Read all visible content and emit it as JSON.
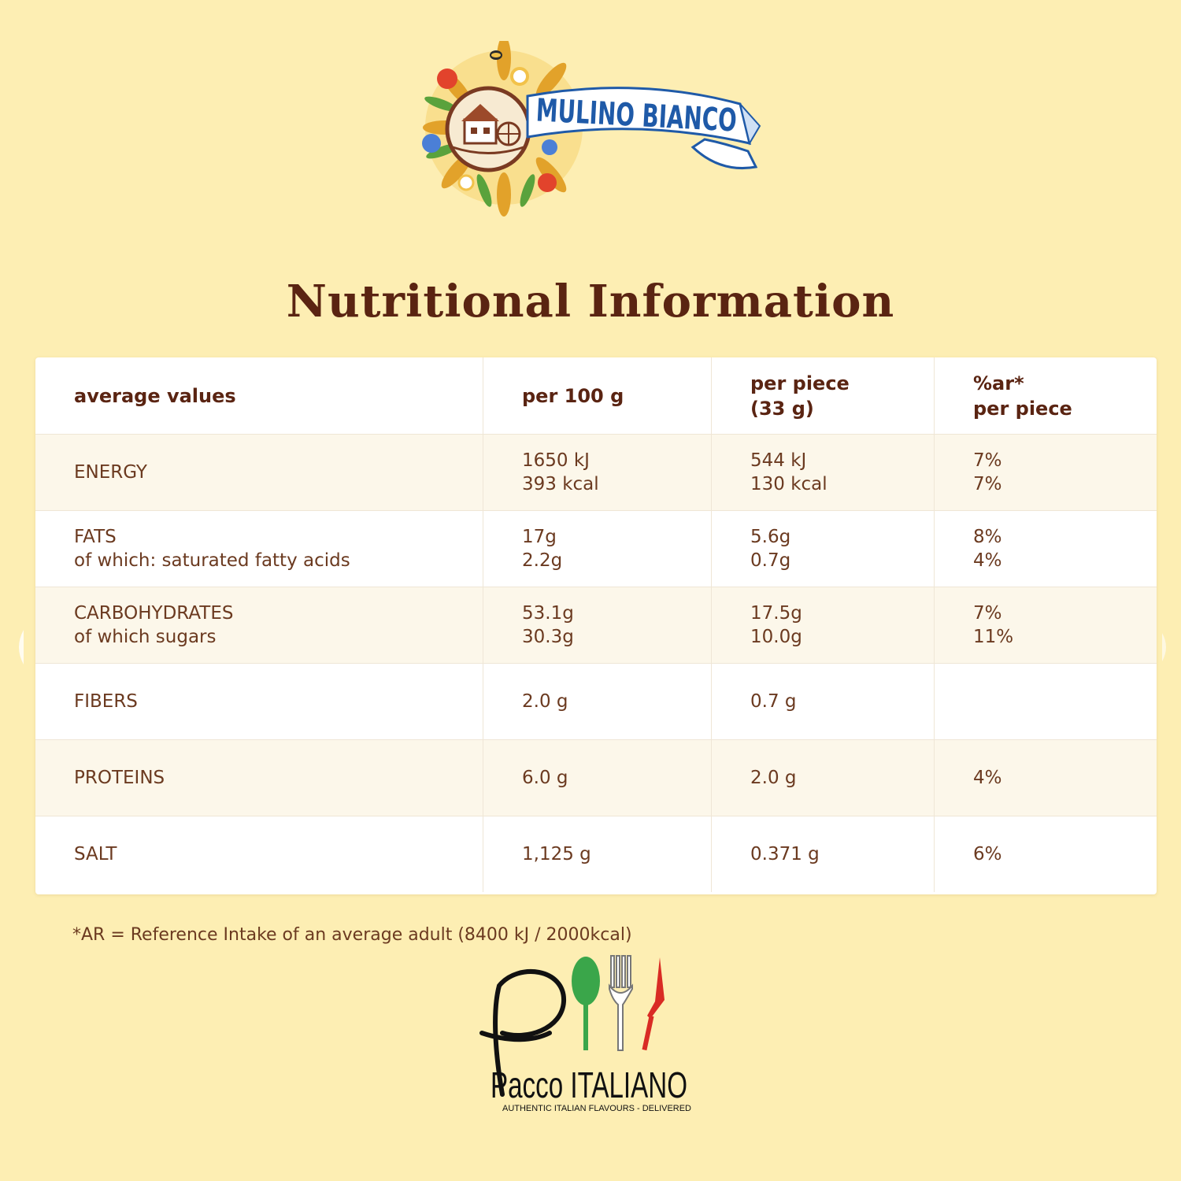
{
  "brand_logo": {
    "name": "MULINO BIANCO",
    "icon": "mill-wreath-logo"
  },
  "title": "Nutritional Information",
  "table": {
    "headers": [
      [
        "average values"
      ],
      [
        "per 100 g"
      ],
      [
        "per piece",
        "(33 g)"
      ],
      [
        "%ar*",
        "per piece"
      ]
    ],
    "rows": [
      {
        "shaded": true,
        "cells": [
          [
            "ENERGY"
          ],
          [
            "1650 kJ",
            "393 kcal"
          ],
          [
            "544 kJ",
            "130 kcal"
          ],
          [
            "7%",
            "7%"
          ]
        ]
      },
      {
        "shaded": false,
        "cells": [
          [
            "FATS",
            "of which: saturated fatty acids"
          ],
          [
            "17g",
            "2.2g"
          ],
          [
            "5.6g",
            "0.7g"
          ],
          [
            "8%",
            "4%"
          ]
        ]
      },
      {
        "shaded": true,
        "cells": [
          [
            "CARBOHYDRATES",
            "of which sugars"
          ],
          [
            "53.1g",
            "30.3g"
          ],
          [
            "17.5g",
            "10.0g"
          ],
          [
            "7%",
            "11%"
          ]
        ]
      },
      {
        "shaded": false,
        "cells": [
          [
            "FIBERS"
          ],
          [
            "2.0 g"
          ],
          [
            "0.7 g"
          ],
          []
        ]
      },
      {
        "shaded": true,
        "cells": [
          [
            "PROTEINS"
          ],
          [
            "6.0 g"
          ],
          [
            "2.0 g"
          ],
          [
            "4%"
          ]
        ]
      },
      {
        "shaded": false,
        "cells": [
          [
            "SALT"
          ],
          [
            "1,125 g"
          ],
          [
            "0.371 g"
          ],
          [
            "6%"
          ]
        ]
      }
    ]
  },
  "footnote": "*AR = Reference Intake of an average adult (8400 kJ / 2000kcal)",
  "footer_logo": {
    "name": "Pacco ITALIANO",
    "tagline": "AUTHENTIC ITALIAN FLAVOURS - DELIVERED",
    "icon": "cutlery-logo"
  },
  "colors": {
    "background": "#fdeeb3",
    "title": "#5a2412",
    "text": "#6b3a20",
    "brand_blue": "#1f5aa8",
    "spoon_green": "#3aa64a",
    "knife_red": "#d92b24"
  }
}
